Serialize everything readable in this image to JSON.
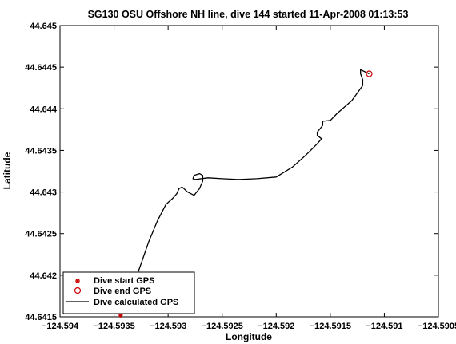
{
  "chart_data": {
    "type": "line",
    "title": "SG130 OSU Offshore NH line, dive 144 started 11-Apr-2008 01:13:53",
    "xlabel": "Longitude",
    "ylabel": "Latitude",
    "xlim": [
      -124.594,
      -124.5905
    ],
    "ylim": [
      44.6415,
      44.645
    ],
    "x_ticks": [
      -124.594,
      -124.5935,
      -124.593,
      -124.5925,
      -124.592,
      -124.5915,
      -124.591,
      -124.5905
    ],
    "x_tick_labels": [
      "−124.594",
      "−124.5935",
      "−124.593",
      "−124.5925",
      "−124.592",
      "−124.5915",
      "−124.591",
      "−124.5905"
    ],
    "y_ticks": [
      44.6415,
      44.642,
      44.6425,
      44.643,
      44.6435,
      44.644,
      44.6445,
      44.645
    ],
    "y_tick_labels": [
      "44.6415",
      "44.642",
      "44.6425",
      "44.643",
      "44.6435",
      "44.644",
      "44.6445",
      "44.645"
    ],
    "grid": false,
    "legend_position": "bottom-left",
    "series": [
      {
        "name": "Dive start GPS",
        "marker": "star",
        "color": "#cc0000",
        "points": [
          [
            -124.59344,
            44.64152
          ]
        ]
      },
      {
        "name": "Dive end GPS",
        "marker": "circle",
        "color": "#cc0000",
        "points": [
          [
            -124.59114,
            44.64442
          ]
        ]
      },
      {
        "name": "Dive calculated GPS",
        "marker": "none",
        "color": "#000000",
        "x": [
          -124.59344,
          -124.59335,
          -124.59326,
          -124.59318,
          -124.5931,
          -124.59302,
          -124.59296,
          -124.59292,
          -124.5929,
          -124.59287,
          -124.59282,
          -124.59276,
          -124.59271,
          -124.59268,
          -124.59268,
          -124.59271,
          -124.59276,
          -124.59277,
          -124.59275,
          -124.59263,
          -124.5925,
          -124.59235,
          -124.59218,
          -124.592,
          -124.59185,
          -124.59172,
          -124.59162,
          -124.59158,
          -124.59162,
          -124.59162,
          -124.59157,
          -124.59157,
          -124.5915,
          -124.59144,
          -124.5913,
          -124.5912,
          -124.5912,
          -124.59122,
          -124.59122,
          -124.59114
        ],
        "y": [
          44.64152,
          44.64178,
          44.6421,
          44.6424,
          44.64265,
          44.64285,
          44.64292,
          44.64298,
          44.64304,
          44.64306,
          44.643,
          44.64296,
          44.64304,
          44.64313,
          44.6432,
          44.64322,
          44.6432,
          44.64316,
          44.64315,
          44.64317,
          44.64316,
          44.64315,
          44.64316,
          44.64318,
          44.6433,
          44.64345,
          44.64358,
          44.64364,
          44.64368,
          44.64372,
          44.6438,
          44.64385,
          44.64386,
          44.64394,
          44.6441,
          44.64428,
          44.64435,
          44.64442,
          44.64447,
          44.64442
        ]
      }
    ]
  }
}
